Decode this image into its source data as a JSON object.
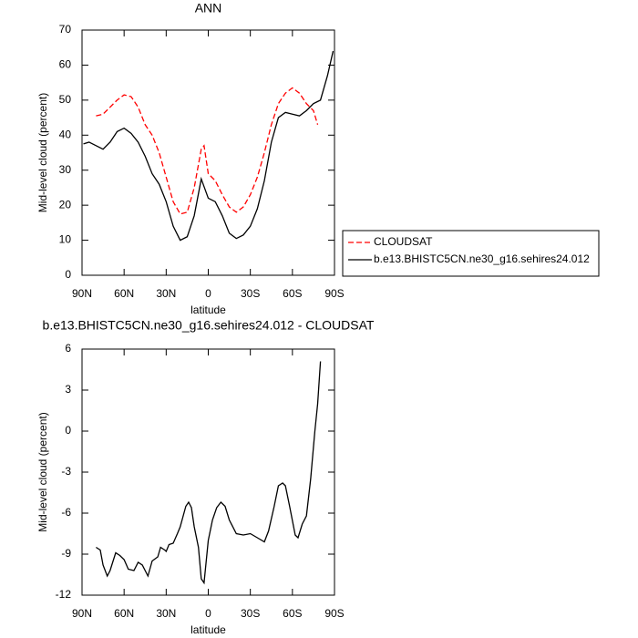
{
  "chart_data": [
    {
      "type": "line",
      "title": "ANN",
      "xlabel": "latitude",
      "ylabel": "Mid-level cloud (percent)",
      "xlim": [
        90,
        -90
      ],
      "ylim": [
        0,
        70
      ],
      "xticks": [
        {
          "value": 90,
          "label": "90N"
        },
        {
          "value": 60,
          "label": "60N"
        },
        {
          "value": 30,
          "label": "30N"
        },
        0,
        {
          "value": -30,
          "label": "30S"
        },
        {
          "value": -60,
          "label": "60S"
        },
        {
          "value": -90,
          "label": "90S"
        }
      ],
      "yticks": [
        0,
        10,
        20,
        30,
        40,
        50,
        60,
        70
      ],
      "series": [
        {
          "name": "CLOUDSAT",
          "color": "#ff0000",
          "dashed": true,
          "x": [
            80,
            75,
            70,
            65,
            60,
            55,
            50,
            45,
            40,
            35,
            30,
            25,
            20,
            15,
            10,
            5,
            3,
            0,
            -5,
            -10,
            -15,
            -20,
            -25,
            -30,
            -35,
            -40,
            -45,
            -50,
            -55,
            -60,
            -65,
            -70,
            -75,
            -78
          ],
          "values": [
            45.5,
            46,
            48,
            50,
            51.5,
            51,
            48,
            43,
            40,
            35,
            28,
            21,
            17.5,
            18,
            25,
            36,
            37,
            29,
            27,
            23,
            19.5,
            18,
            19.5,
            23,
            28,
            35,
            43,
            49,
            52,
            53.5,
            52,
            49,
            47,
            43
          ]
        },
        {
          "name": "b.e13.BHISTC5CN.ne30_g16.sehires24.012",
          "color": "#000000",
          "dashed": false,
          "x": [
            89,
            85,
            80,
            75,
            70,
            65,
            60,
            55,
            50,
            45,
            40,
            35,
            30,
            25,
            20,
            15,
            10,
            5,
            0,
            -5,
            -10,
            -15,
            -20,
            -25,
            -30,
            -35,
            -40,
            -45,
            -50,
            -55,
            -60,
            -65,
            -70,
            -75,
            -80,
            -85,
            -89
          ],
          "values": [
            37.5,
            38,
            37,
            36,
            38,
            41,
            42,
            40.5,
            38,
            34,
            29,
            26,
            21,
            14,
            10,
            11,
            17,
            27.5,
            22,
            21,
            17,
            12,
            10.5,
            11.5,
            14,
            19,
            27,
            38,
            45,
            46.5,
            46,
            45.5,
            47,
            49,
            50,
            57,
            64
          ]
        }
      ]
    },
    {
      "type": "line",
      "title": "b.e13.BHISTC5CN.ne30_g16.sehires24.012 - CLOUDSAT",
      "xlabel": "latitude",
      "ylabel": "Mid-level cloud (percent)",
      "xlim": [
        90,
        -90
      ],
      "ylim": [
        -12,
        6
      ],
      "xticks": [
        {
          "value": 90,
          "label": "90N"
        },
        {
          "value": 60,
          "label": "60N"
        },
        {
          "value": 30,
          "label": "30N"
        },
        0,
        {
          "value": -30,
          "label": "30S"
        },
        {
          "value": -60,
          "label": "60S"
        },
        {
          "value": -90,
          "label": "90S"
        }
      ],
      "yticks": [
        -12,
        -9,
        -6,
        -3,
        0,
        3,
        6
      ],
      "series": [
        {
          "color": "#000000",
          "dashed": false,
          "x": [
            80,
            77,
            75,
            72,
            70,
            66,
            63,
            60,
            57,
            53,
            50,
            47,
            43,
            40,
            36,
            34,
            31,
            30,
            28,
            25,
            22,
            20,
            16,
            14,
            12,
            10,
            7,
            5,
            3,
            0,
            -3,
            -6,
            -9,
            -12,
            -15,
            -20,
            -25,
            -30,
            -35,
            -40,
            -43,
            -47,
            -50,
            -53,
            -55,
            -58,
            -62,
            -64,
            -67,
            -70,
            -73,
            -76,
            -78,
            -80
          ],
          "values": [
            -8.5,
            -8.7,
            -9.8,
            -10.6,
            -10.2,
            -8.9,
            -9.1,
            -9.4,
            -10.1,
            -10.2,
            -9.6,
            -9.8,
            -10.6,
            -9.5,
            -9.2,
            -8.5,
            -8.7,
            -8.8,
            -8.3,
            -8.2,
            -7.5,
            -7,
            -5.5,
            -5.2,
            -5.6,
            -7,
            -8.5,
            -10.8,
            -11.1,
            -8,
            -6.5,
            -5.6,
            -5.2,
            -5.5,
            -6.5,
            -7.5,
            -7.6,
            -7.5,
            -7.8,
            -8.1,
            -7.3,
            -5.5,
            -4,
            -3.8,
            -4,
            -5.5,
            -7.6,
            -7.8,
            -6.8,
            -6.2,
            -3.5,
            0,
            2,
            5.1
          ]
        }
      ]
    }
  ]
}
